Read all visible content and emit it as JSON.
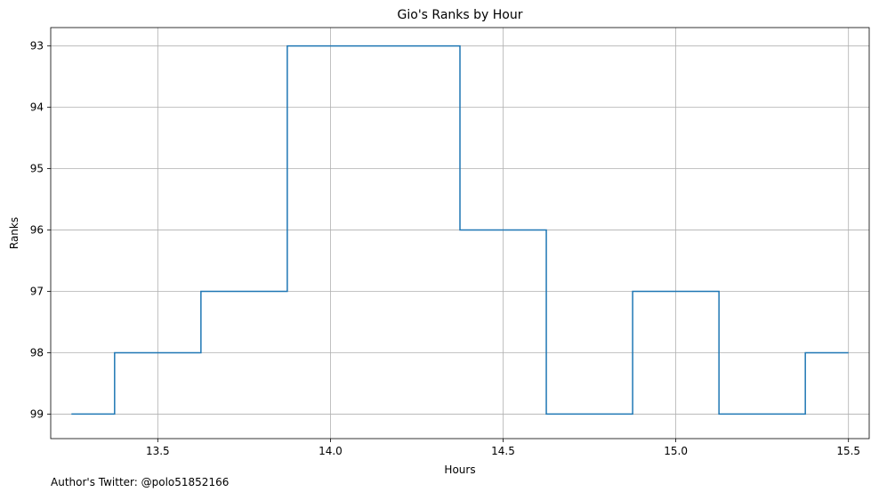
{
  "chart_data": {
    "type": "line",
    "step": "post",
    "title": "Gio's Ranks by Hour",
    "xlabel": "Hours",
    "ylabel": "Ranks",
    "xlim": [
      13.19,
      15.56
    ],
    "ylim": [
      99.4,
      92.7
    ],
    "y_inverted": true,
    "xticks": [
      13.5,
      14.0,
      14.5,
      15.0,
      15.5
    ],
    "xtick_labels": [
      "13.5",
      "14.0",
      "14.5",
      "15.0",
      "15.5"
    ],
    "yticks": [
      93,
      94,
      95,
      96,
      97,
      98,
      99
    ],
    "ytick_labels": [
      "93",
      "94",
      "95",
      "96",
      "97",
      "98",
      "99"
    ],
    "grid": true,
    "series": [
      {
        "color": "#1f77b4",
        "x": [
          13.25,
          13.375,
          13.625,
          13.875,
          14.375,
          14.625,
          14.875,
          15.125,
          15.375,
          15.5
        ],
        "y": [
          99,
          98,
          97,
          93,
          96,
          99,
          97,
          99,
          98,
          98
        ]
      }
    ]
  },
  "footnote": "Author's Twitter: @polo51852166"
}
